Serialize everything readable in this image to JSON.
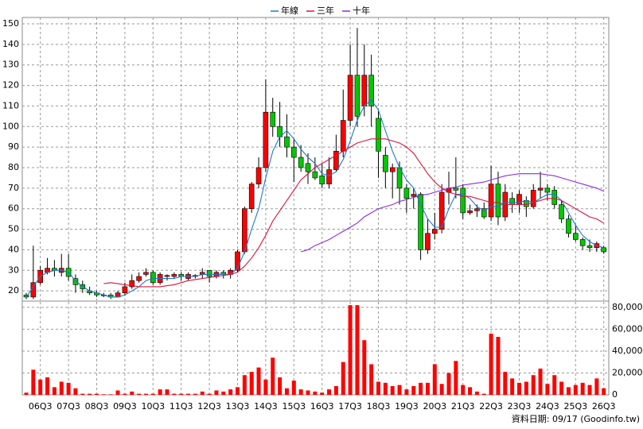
{
  "chart_data": [
    {
      "type": "candlestick",
      "categories": [
        null,
        null,
        "06Q3",
        null,
        null,
        null,
        "07Q3",
        null,
        null,
        null,
        "08Q3",
        null,
        null,
        null,
        "09Q3",
        null,
        null,
        null,
        "10Q3",
        null,
        null,
        null,
        "11Q3",
        null,
        null,
        null,
        "12Q3",
        null,
        null,
        null,
        "13Q3",
        null,
        null,
        null,
        "14Q3",
        null,
        null,
        null,
        "15Q3",
        null,
        null,
        null,
        "16Q3",
        null,
        null,
        null,
        "17Q3",
        null,
        null,
        null,
        "18Q3",
        null,
        null,
        null,
        "19Q3",
        null,
        null,
        null,
        "20Q3",
        null,
        null,
        null,
        "21Q3",
        null,
        null,
        null,
        "22Q3",
        null,
        null,
        null,
        "23Q3",
        null,
        null,
        null,
        "24Q3",
        null,
        null,
        null,
        "25Q3",
        null,
        null,
        null,
        "26Q3"
      ],
      "ohlc": [
        [
          18,
          19,
          16,
          17
        ],
        [
          17,
          42,
          16,
          24
        ],
        [
          24,
          32,
          23,
          30
        ],
        [
          29,
          36,
          28,
          31
        ],
        [
          31,
          35,
          27,
          30
        ],
        [
          29,
          38,
          27,
          31
        ],
        [
          31,
          38,
          25,
          27
        ],
        [
          26,
          28,
          19,
          23
        ],
        [
          23,
          25,
          19,
          21
        ],
        [
          20,
          22,
          18,
          19
        ],
        [
          19,
          20,
          17,
          18
        ],
        [
          18,
          19,
          17,
          18
        ],
        [
          18,
          19,
          16,
          17
        ],
        [
          17,
          20,
          17,
          19
        ],
        [
          19,
          24,
          18,
          22
        ],
        [
          22,
          28,
          21,
          25
        ],
        [
          25,
          29,
          24,
          27
        ],
        [
          28,
          31,
          27,
          29
        ],
        [
          29,
          30,
          23,
          24
        ],
        [
          24,
          29,
          23,
          28
        ],
        [
          27,
          28,
          25,
          27.5
        ],
        [
          27,
          29,
          26,
          28
        ],
        [
          28,
          29,
          25,
          27
        ],
        [
          26,
          29,
          25,
          28
        ],
        [
          27,
          28,
          26,
          27.5
        ],
        [
          28,
          31,
          26,
          29
        ],
        [
          30,
          30,
          24,
          27
        ],
        [
          27,
          30,
          26,
          29
        ],
        [
          29,
          30,
          26,
          28
        ],
        [
          28,
          31,
          26,
          30
        ],
        [
          30,
          40,
          29,
          39
        ],
        [
          39,
          61,
          38,
          60
        ],
        [
          60,
          73,
          58,
          72
        ],
        [
          72,
          85,
          70,
          80
        ],
        [
          80,
          123,
          78,
          107
        ],
        [
          107,
          114,
          95,
          100
        ],
        [
          100,
          112,
          90,
          95
        ],
        [
          95,
          106,
          85,
          90
        ],
        [
          90,
          94,
          73,
          85
        ],
        [
          85,
          91,
          78,
          80
        ],
        [
          82,
          87,
          72,
          78
        ],
        [
          78,
          85,
          74,
          75
        ],
        [
          76,
          82,
          70,
          72
        ],
        [
          72,
          85,
          70,
          79
        ],
        [
          79,
          96,
          78,
          88
        ],
        [
          88,
          118,
          85,
          103
        ],
        [
          103,
          140,
          100,
          125
        ],
        [
          125,
          148,
          100,
          105
        ],
        [
          110,
          140,
          105,
          125
        ],
        [
          125,
          135,
          100,
          110
        ],
        [
          104,
          108,
          75,
          88
        ],
        [
          86,
          90,
          70,
          78
        ],
        [
          78,
          82,
          65,
          80
        ],
        [
          80,
          83,
          62,
          70
        ],
        [
          70,
          72,
          58,
          65
        ],
        [
          66,
          70,
          60,
          67
        ],
        [
          67,
          68,
          35,
          40
        ],
        [
          40,
          55,
          38,
          48
        ],
        [
          48,
          58,
          45,
          50
        ],
        [
          50,
          72,
          48,
          68
        ],
        [
          68,
          78,
          62,
          70
        ],
        [
          70,
          85,
          65,
          69
        ],
        [
          70,
          72,
          55,
          58
        ],
        [
          58,
          62,
          57,
          59
        ],
        [
          59,
          62,
          56,
          60
        ],
        [
          60,
          63,
          55,
          56
        ],
        [
          56,
          81,
          54,
          72
        ],
        [
          72,
          78,
          52,
          56
        ],
        [
          56,
          72,
          54,
          68
        ],
        [
          65,
          68,
          58,
          62
        ],
        [
          62,
          69,
          58,
          67
        ],
        [
          64,
          66,
          56,
          61
        ],
        [
          61,
          72,
          60,
          69
        ],
        [
          69,
          78,
          65,
          70
        ],
        [
          70,
          72,
          64,
          68
        ],
        [
          69,
          71,
          60,
          62
        ],
        [
          62,
          64,
          53,
          55
        ],
        [
          55,
          57,
          46,
          48
        ],
        [
          48,
          52,
          44,
          45
        ],
        [
          45,
          46,
          40,
          42
        ],
        [
          42,
          45,
          39,
          41
        ],
        [
          41,
          44,
          39,
          43
        ],
        [
          41,
          42,
          38,
          39
        ]
      ],
      "up_color": "#ff0000",
      "down_color": "#00c800",
      "series": [
        {
          "name": "年線",
          "color": "#1e78c8",
          "values": [
            17,
            22,
            27,
            29,
            30,
            30,
            29,
            25,
            22,
            20,
            19,
            18,
            17,
            17,
            18,
            20,
            22,
            25,
            26,
            26,
            26,
            26,
            27,
            27,
            27,
            28,
            28,
            28,
            28,
            28,
            31,
            39,
            50,
            60,
            75,
            88,
            95,
            98,
            94,
            89,
            85,
            82,
            77,
            76,
            78,
            84,
            93,
            103,
            110,
            113,
            108,
            98,
            88,
            80,
            74,
            70,
            62,
            55,
            51,
            51,
            60,
            67,
            67,
            65,
            61,
            59,
            61,
            61,
            63,
            63,
            63,
            64,
            63,
            65,
            67,
            67,
            64,
            58,
            52,
            47,
            44,
            42,
            41
          ]
        },
        {
          "name": "三年",
          "color": "#dc143c",
          "values": [
            null,
            null,
            null,
            null,
            null,
            null,
            null,
            null,
            null,
            null,
            null,
            23.5,
            24,
            23.5,
            23,
            22.5,
            22,
            22,
            22,
            22,
            22.5,
            23,
            24,
            25,
            25.5,
            26,
            26.5,
            27,
            27.5,
            28,
            29,
            32,
            36,
            41,
            47,
            54,
            59,
            64,
            69,
            74,
            77,
            80,
            82,
            84,
            86,
            88,
            90,
            92,
            93,
            94,
            94,
            94,
            93,
            92,
            90,
            87,
            82,
            77,
            73,
            70,
            68,
            67,
            66,
            66,
            65,
            64,
            63,
            63,
            62,
            62,
            62,
            62,
            63,
            64,
            65,
            65,
            64,
            62,
            60,
            58,
            56,
            55,
            53
          ]
        },
        {
          "name": "十年",
          "color": "#8a2be2",
          "values": [
            null,
            null,
            null,
            null,
            null,
            null,
            null,
            null,
            null,
            null,
            null,
            null,
            null,
            null,
            null,
            null,
            null,
            null,
            null,
            null,
            null,
            null,
            null,
            null,
            null,
            null,
            null,
            null,
            null,
            null,
            null,
            null,
            null,
            null,
            null,
            null,
            null,
            null,
            null,
            39,
            40,
            42,
            43.5,
            45,
            47,
            49,
            51,
            53,
            56,
            58,
            60,
            61,
            62,
            63.5,
            64.5,
            65.5,
            66.5,
            67,
            68,
            69,
            70,
            70.5,
            71.5,
            72,
            72.5,
            73,
            74,
            75,
            76,
            76.5,
            77,
            77,
            77,
            77,
            76.5,
            76,
            75,
            74,
            73,
            72,
            71,
            70,
            68.5
          ]
        }
      ],
      "ylim": [
        15.4,
        153.1
      ],
      "yticks": [
        20,
        30,
        40,
        50,
        60,
        70,
        80,
        90,
        100,
        110,
        120,
        130,
        140,
        150
      ],
      "grid": true,
      "legend": "top",
      "footnote": "資料日期: 09/17 (Goodinfo.tw)"
    },
    {
      "type": "bar",
      "color": "#ff0000",
      "values": [
        2000,
        23000,
        14000,
        16000,
        7000,
        12000,
        11000,
        6000,
        1000,
        1000,
        1000,
        500,
        500,
        4000,
        1000,
        3000,
        1000,
        1000,
        1000,
        5000,
        5000,
        1000,
        1000,
        1000,
        1000,
        3000,
        1000,
        4000,
        3000,
        5000,
        7000,
        18000,
        21000,
        25000,
        14000,
        34000,
        16000,
        6000,
        13000,
        5000,
        4000,
        3000,
        2000,
        5000,
        8000,
        30000,
        82000,
        82000,
        50000,
        28000,
        12000,
        11000,
        8000,
        9000,
        5000,
        8000,
        11000,
        11000,
        28000,
        10000,
        20000,
        31000,
        9000,
        7000,
        3000,
        1000,
        56000,
        53000,
        21000,
        15000,
        11000,
        12000,
        18000,
        24000,
        10000,
        18000,
        12000,
        7000,
        9000,
        11000,
        9000,
        15000,
        6000
      ],
      "ylim": [
        0,
        85000
      ],
      "yticks": [
        0,
        {
          "value": 20000,
          "label": "20,000"
        },
        {
          "value": 40000,
          "label": "40,000"
        },
        {
          "value": 60000,
          "label": "60,000"
        },
        {
          "value": 80000,
          "label": "80,000"
        }
      ],
      "grid": true
    }
  ]
}
